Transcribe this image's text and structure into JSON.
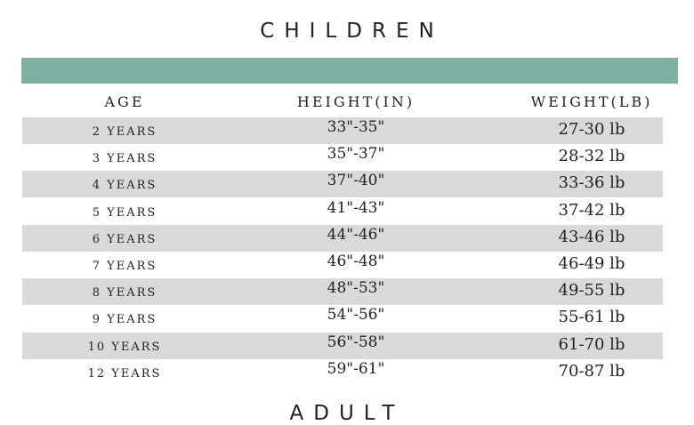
{
  "title": "CHILDREN",
  "accent_color": "#7db0a3",
  "stripe_color": "#d9d9d9",
  "headers": {
    "age": "AGE",
    "height": "HEIGHT(IN)",
    "weight": "WEIGHT(LB)"
  },
  "rows": [
    {
      "age": "2 YEARS",
      "height": "33\"-35\"",
      "weight": "27-30 lb"
    },
    {
      "age": "3 YEARS",
      "height": "35\"-37\"",
      "weight": "28-32 lb"
    },
    {
      "age": "4 YEARS",
      "height": "37\"-40\"",
      "weight": "33-36 lb"
    },
    {
      "age": "5 YEARS",
      "height": "41\"-43\"",
      "weight": "37-42 lb"
    },
    {
      "age": "6 YEARS",
      "height": "44\"-46\"",
      "weight": "43-46 lb"
    },
    {
      "age": "7 YEARS",
      "height": "46\"-48\"",
      "weight": "46-49 lb"
    },
    {
      "age": "8 YEARS",
      "height": "48\"-53\"",
      "weight": "49-55 lb"
    },
    {
      "age": "9 YEARS",
      "height": "54\"-56\"",
      "weight": "55-61 lb"
    },
    {
      "age": "10 YEARS",
      "height": "56\"-58\"",
      "weight": "61-70 lb"
    },
    {
      "age": "12 YEARS",
      "height": "59\"-61\"",
      "weight": "70-87 lb"
    }
  ],
  "next_section_title": "ADULT"
}
